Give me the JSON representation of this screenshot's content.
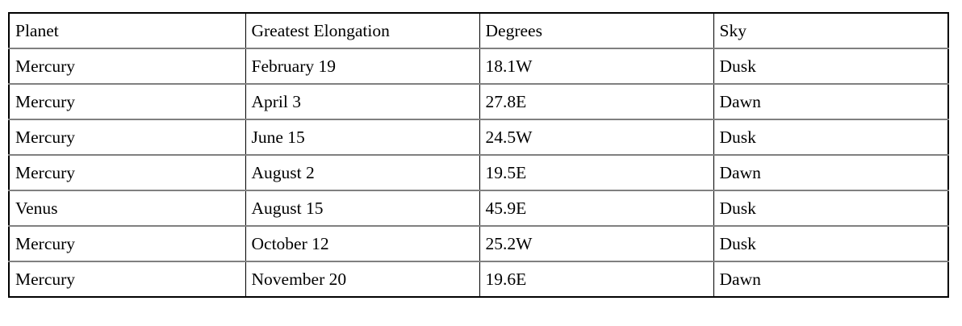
{
  "table": {
    "columns": [
      "Planet",
      "Greatest Elongation",
      "Degrees",
      "Sky"
    ],
    "rows": [
      [
        "Mercury",
        "February 19",
        "18.1W",
        "Dusk"
      ],
      [
        "Mercury",
        "April 3",
        "27.8E",
        "Dawn"
      ],
      [
        "Mercury",
        "June 15",
        "24.5W",
        "Dusk"
      ],
      [
        "Mercury",
        "August 2",
        "19.5E",
        "Dawn"
      ],
      [
        "Venus",
        "August 15",
        "45.9E",
        "Dusk"
      ],
      [
        "Mercury",
        "October 12",
        "25.2W",
        "Dusk"
      ],
      [
        "Mercury",
        "November 20",
        "19.6E",
        "Dawn"
      ]
    ]
  },
  "colors": {
    "outer_border": "#000000",
    "row_divider": "#808080",
    "column_divider": "#000000",
    "text": "#000000",
    "background": "#ffffff"
  }
}
